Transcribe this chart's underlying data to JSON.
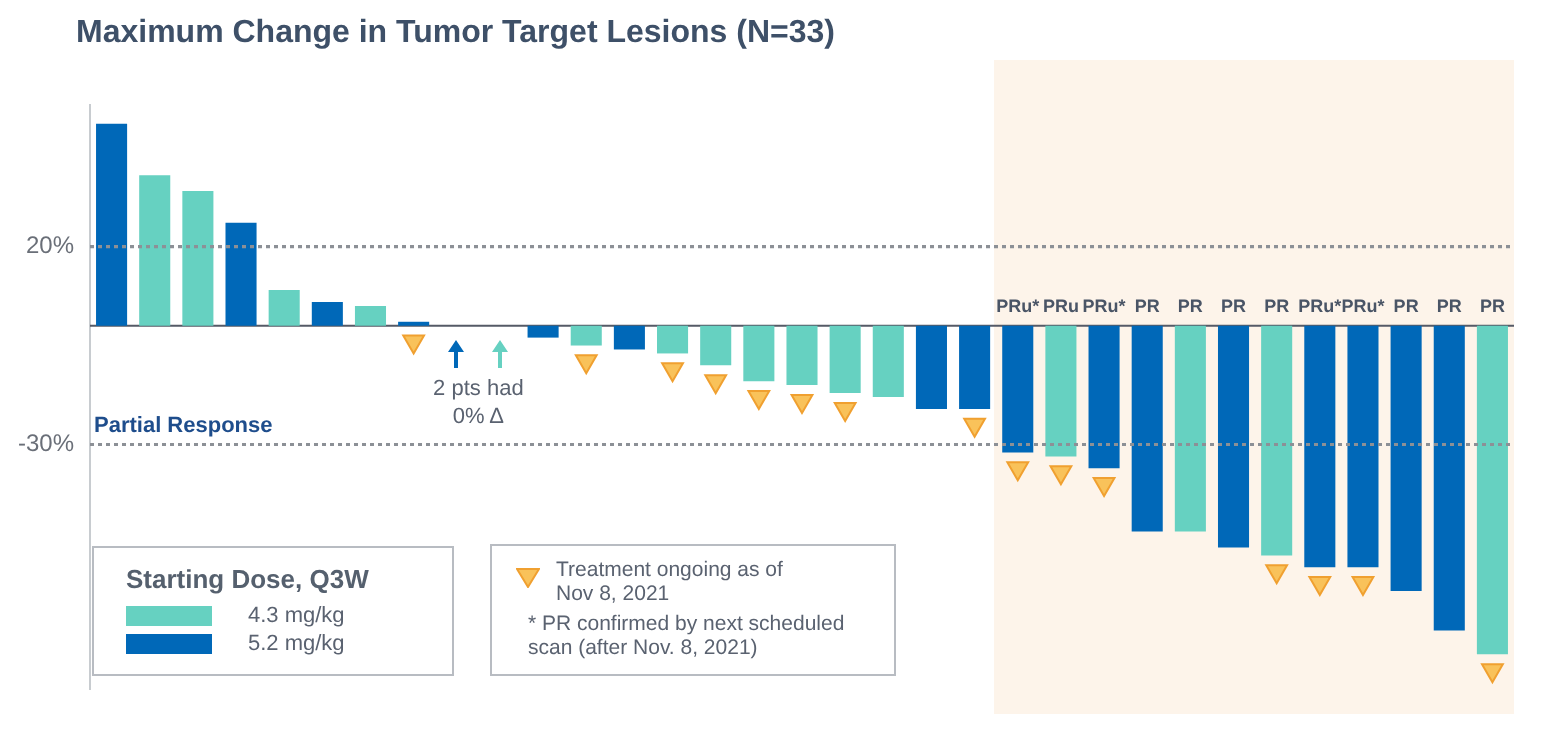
{
  "chart_data": {
    "type": "bar",
    "title": "Maximum Change in Tumor Target Lesions (N=33)",
    "legend_title": "Starting Dose, Q3W",
    "categories": [
      null,
      null,
      null,
      null,
      null,
      null,
      null,
      null,
      null,
      null,
      null,
      null,
      null,
      null,
      null,
      null,
      null,
      null,
      null,
      null,
      null,
      null,
      null,
      null,
      null,
      null,
      null,
      null,
      null,
      null,
      null,
      null,
      null
    ],
    "series": [
      {
        "name": "4.3 mg/kg",
        "color": "#66d1c1",
        "values": [
          null,
          38,
          34,
          null,
          9,
          null,
          5,
          null,
          null,
          0,
          null,
          -5,
          null,
          -7,
          -10,
          -14,
          -15,
          -17,
          -18,
          null,
          null,
          null,
          -33,
          null,
          null,
          -52,
          null,
          -58,
          null,
          null,
          null,
          null,
          -83
        ],
        "value_labels": [
          null,
          null,
          null,
          null,
          null,
          null,
          null,
          null,
          null,
          null,
          null,
          null,
          null,
          null,
          null,
          null,
          null,
          null,
          null,
          null,
          null,
          null,
          "PRu",
          null,
          null,
          "PR",
          null,
          "PR",
          null,
          null,
          null,
          null,
          "PR"
        ]
      },
      {
        "name": "5.2 mg/kg",
        "color": "#0068b8",
        "values": [
          51,
          null,
          null,
          26,
          null,
          6,
          null,
          1,
          0,
          null,
          -3,
          null,
          -6,
          null,
          null,
          null,
          null,
          null,
          null,
          -21,
          -21,
          -32,
          null,
          -36,
          -52,
          null,
          -56,
          null,
          -61,
          -61,
          -67,
          -77,
          null
        ],
        "value_labels": [
          null,
          null,
          null,
          null,
          null,
          null,
          null,
          null,
          null,
          null,
          null,
          null,
          null,
          null,
          null,
          null,
          null,
          null,
          null,
          null,
          null,
          "PRu*",
          null,
          "PRu*",
          "PR",
          null,
          "PR",
          null,
          "PRu*",
          "PRu*",
          "PR",
          "PR",
          null
        ]
      },
      {
        "name": "Treatment ongoing as of Nov 8, 2021",
        "type": "scatter",
        "color": "#f9c25a",
        "values": [
          null,
          null,
          null,
          null,
          null,
          null,
          null,
          -4,
          null,
          null,
          null,
          -9,
          null,
          -11,
          -14,
          -18,
          -19,
          -21,
          null,
          null,
          -25,
          -36,
          -37,
          -40,
          null,
          null,
          null,
          -62,
          -65,
          -65,
          null,
          null,
          -87
        ]
      }
    ],
    "ylim": [
      -92,
      56
    ],
    "yticks": [
      {
        "value": 20,
        "label": "20%"
      },
      {
        "value": -30,
        "label": "-30%"
      }
    ],
    "marker": "triangle",
    "legend": "bottom left",
    "ref_lines": [
      {
        "axis": "y",
        "value": 20,
        "line_style": "dotted"
      },
      {
        "axis": "y",
        "value": -30,
        "label": "Partial Response",
        "line_style": "dotted"
      }
    ],
    "annotations": [
      "2 pts had 0% Δ",
      "* PR confirmed by next scheduled scan (after Nov. 8, 2021)"
    ]
  }
}
